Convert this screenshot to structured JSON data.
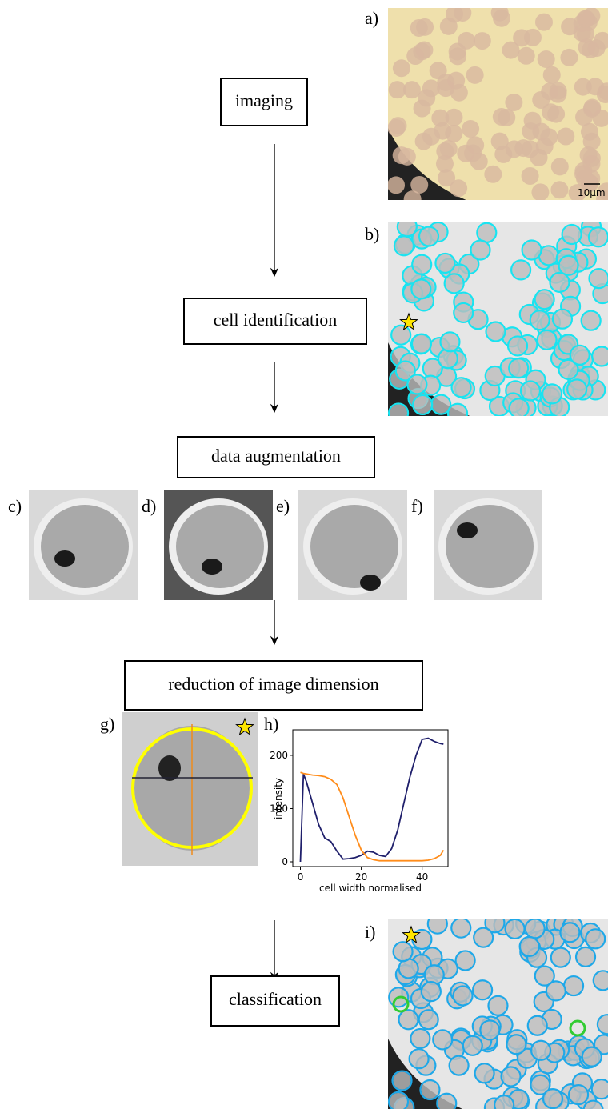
{
  "steps": [
    "imaging",
    "cell identification",
    "data augmentation",
    "reduction of image dimension",
    "classification"
  ],
  "panel_labels": [
    "a)",
    "b)",
    "c)",
    "d)",
    "e)",
    "f)",
    "g)",
    "h)",
    "i)"
  ],
  "scale_bar": "10μm",
  "plot": {
    "type": "line",
    "x_label": "cell width normalised",
    "y_label": "intensity",
    "x": [
      0,
      1,
      2,
      4,
      6,
      8,
      10,
      12,
      14,
      16,
      18,
      20,
      22,
      24,
      26,
      28,
      30,
      32,
      34,
      36,
      38,
      40,
      42,
      44,
      46,
      47
    ],
    "series": [
      {
        "color": "#1f1f6b",
        "values": [
          0,
          165,
          150,
          110,
          70,
          45,
          38,
          20,
          5,
          6,
          8,
          12,
          20,
          18,
          12,
          10,
          25,
          60,
          110,
          160,
          200,
          230,
          232,
          226,
          222,
          221
        ]
      },
      {
        "color": "#ff8c1a",
        "values": [
          168,
          166,
          165,
          163,
          162,
          160,
          155,
          145,
          120,
          85,
          50,
          22,
          8,
          4,
          2,
          2,
          2,
          2,
          2,
          2,
          2,
          2,
          3,
          6,
          12,
          22
        ]
      }
    ],
    "xlim": [
      -2.5,
      48.5
    ],
    "ylim": [
      -9,
      248
    ],
    "xticks": [
      0,
      20,
      40
    ],
    "yticks": [
      0,
      100,
      200
    ]
  }
}
